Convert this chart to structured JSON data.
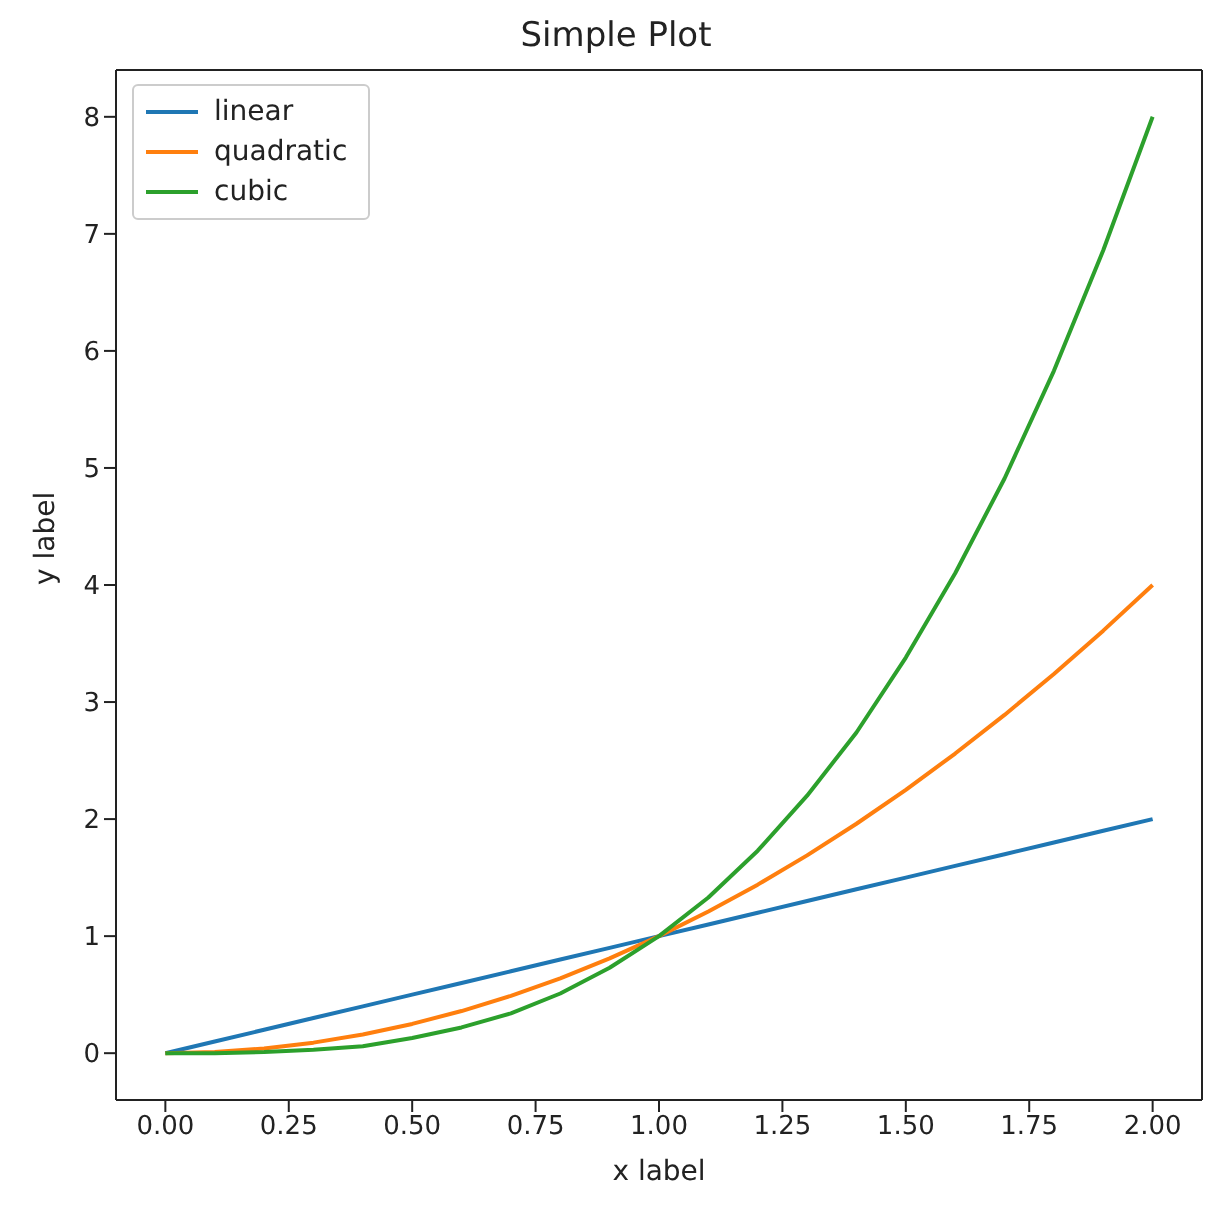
{
  "chart_data": {
    "type": "line",
    "title": "Simple Plot",
    "xlabel": "x label",
    "ylabel": "y label",
    "x": [
      0,
      0.1,
      0.2,
      0.3,
      0.4,
      0.5,
      0.6,
      0.7,
      0.8,
      0.9,
      1,
      1.1,
      1.2,
      1.3,
      1.4,
      1.5,
      1.6,
      1.7,
      1.8,
      1.9,
      2
    ],
    "series": [
      {
        "name": "linear",
        "color": "#1f77b4",
        "values": [
          0,
          0.1,
          0.2,
          0.3,
          0.4,
          0.5,
          0.6,
          0.7,
          0.8,
          0.9,
          1,
          1.1,
          1.2,
          1.3,
          1.4,
          1.5,
          1.6,
          1.7,
          1.8,
          1.9,
          2
        ]
      },
      {
        "name": "quadratic",
        "color": "#ff7f0e",
        "values": [
          0,
          0.01,
          0.04,
          0.09,
          0.16,
          0.25,
          0.36,
          0.49,
          0.64,
          0.81,
          1,
          1.21,
          1.44,
          1.69,
          1.96,
          2.25,
          2.56,
          2.89,
          3.24,
          3.61,
          4
        ]
      },
      {
        "name": "cubic",
        "color": "#2ca02c",
        "values": [
          0,
          0,
          0.01,
          0.03,
          0.06,
          0.13,
          0.22,
          0.34,
          0.51,
          0.73,
          1,
          1.33,
          1.73,
          2.2,
          2.74,
          3.38,
          4.1,
          4.91,
          5.83,
          6.86,
          8
        ]
      }
    ],
    "xlim": [
      -0.1,
      2.1
    ],
    "ylim": [
      -0.4,
      8.4
    ],
    "xticks": [
      {
        "value": 0,
        "label": "0.00"
      },
      {
        "value": 0.25,
        "label": "0.25"
      },
      {
        "value": 0.5,
        "label": "0.50"
      },
      {
        "value": 0.75,
        "label": "0.75"
      },
      {
        "value": 1,
        "label": "1.00"
      },
      {
        "value": 1.25,
        "label": "1.25"
      },
      {
        "value": 1.5,
        "label": "1.50"
      },
      {
        "value": 1.75,
        "label": "1.75"
      },
      {
        "value": 2,
        "label": "2.00"
      }
    ],
    "yticks": [
      0,
      1,
      2,
      3,
      4,
      5,
      6,
      7,
      8
    ],
    "legend": "top left",
    "grid": false,
    "marker": "none",
    "line_style": "solid"
  }
}
